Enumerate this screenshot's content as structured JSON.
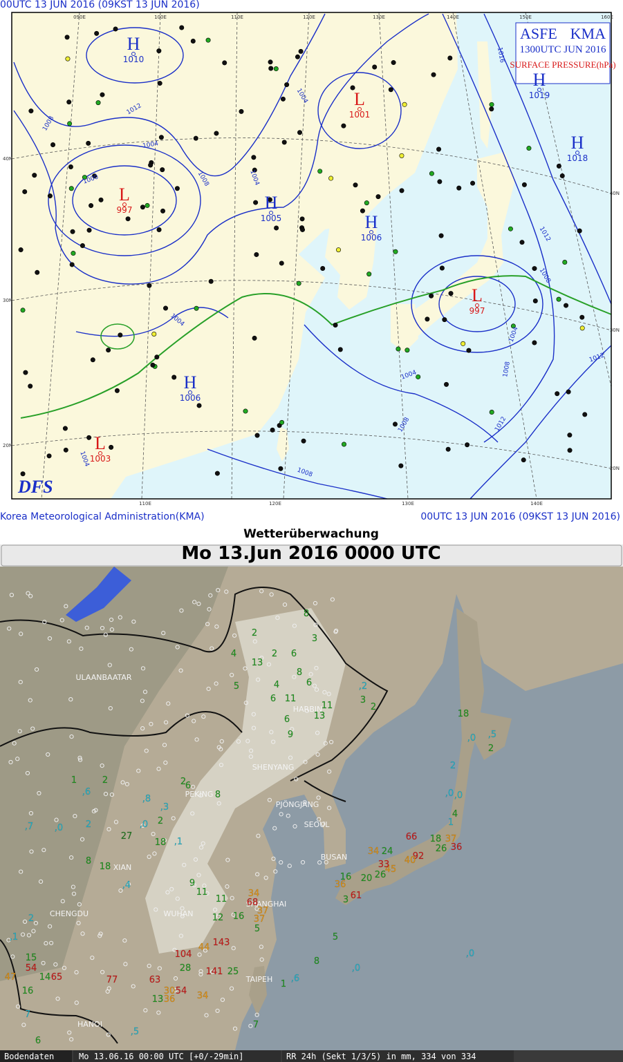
{
  "top_map": {
    "header": "00UTC 13 JUN 2016 (09KST 13 JUN 2016)",
    "legend": {
      "product": "ASFE",
      "agency": "KMA",
      "valid": "1300UTC JUN 2016",
      "field": "SURFACE PRESSURE(hPa)"
    },
    "logo": "DFS",
    "lon_labels_top": [
      "090E",
      "100E",
      "110E",
      "120E",
      "130E",
      "140E",
      "150E",
      "160E"
    ],
    "lon_labels_bottom": [
      "110E",
      "120E",
      "130E",
      "140E"
    ],
    "lat_labels_left": [
      "40N",
      "30N",
      "20N"
    ],
    "lat_labels_right": [
      "40N",
      "30N",
      "20N"
    ],
    "pressure_centers": [
      {
        "label": "H",
        "value": "1010",
        "color": "#1a2fc8"
      },
      {
        "label": "L",
        "value": "1001",
        "color": "#d81818"
      },
      {
        "label": "H",
        "value": "1019",
        "color": "#1a2fc8"
      },
      {
        "label": "H",
        "value": "1018",
        "color": "#1a2fc8"
      },
      {
        "label": "L",
        "value": "997",
        "color": "#d81818"
      },
      {
        "label": "H",
        "value": "1005",
        "color": "#1a2fc8"
      },
      {
        "label": "H",
        "value": "1006",
        "color": "#1a2fc8"
      },
      {
        "label": "L",
        "value": "997",
        "color": "#d81818"
      },
      {
        "label": "H",
        "value": "1006",
        "color": "#1a2fc8"
      },
      {
        "label": "L",
        "value": "1003",
        "color": "#d81818"
      }
    ],
    "isobar_labels": [
      "1008",
      "1012",
      "1004",
      "1000",
      "1008",
      "1004",
      "1004",
      "1016",
      "1012",
      "1008",
      "1004",
      "1008",
      "1012",
      "1012",
      "1004",
      "1008",
      "1008",
      "1004",
      "1004"
    ],
    "footer_left": "Korea Meteorological Administration(KMA)",
    "footer_right": "00UTC 13 JUN 2016 (09KST 13 JUN 2016)"
  },
  "bottom_map": {
    "title": "Wetterüberwachung",
    "date": "Mo 13.Jun 2016 0000 UTC",
    "cities": [
      "ULAANBAATAR",
      "HARBIN",
      "SHENYANG",
      "PEKING",
      "PJÖNGJANG",
      "SEOUL",
      "BUSAN",
      "XIAN",
      "CHENGDU",
      "WUHAN",
      "SHANGHAI",
      "TAIPEH",
      "HANOI"
    ],
    "stations": [
      {
        "value": "8",
        "color": "#1f9a1f"
      },
      {
        "value": "3",
        "color": "#1f9a1f"
      },
      {
        "value": "2",
        "color": "#1f9a1f"
      },
      {
        "value": "4",
        "color": "#1f9a1f"
      },
      {
        "value": "13",
        "color": "#1f9a1f"
      },
      {
        "value": "2",
        "color": "#1f9a1f"
      },
      {
        "value": "6",
        "color": "#1f9a1f"
      },
      {
        "value": "8",
        "color": "#1f9a1f"
      },
      {
        "value": "4",
        "color": "#1f9a1f"
      },
      {
        "value": "6",
        "color": "#1f9a1f"
      },
      {
        "value": "5",
        "color": "#1f9a1f"
      },
      {
        "value": "6",
        "color": "#1f9a1f"
      },
      {
        "value": "11",
        "color": "#1f9a1f"
      },
      {
        "value": "11",
        "color": "#1f9a1f"
      },
      {
        "value": "13",
        "color": "#1f9a1f"
      },
      {
        "value": "6",
        "color": "#1f9a1f"
      },
      {
        "value": "9",
        "color": "#1f9a1f"
      },
      {
        "value": "3",
        "color": "#1f9a1f"
      },
      {
        "value": "2",
        "color": "#1f9a1f"
      },
      {
        "value": "18",
        "color": "#1f9a1f"
      },
      {
        "value": "2",
        "color": "#1f9a1f"
      },
      {
        "value": "1",
        "color": "#1f9a1f"
      },
      {
        "value": "2",
        "color": "#1f9a1f"
      },
      {
        "value": "2",
        "color": "#1f9a1f"
      },
      {
        "value": "6",
        "color": "#1f9a1f"
      },
      {
        "value": "8",
        "color": "#1f9a1f"
      },
      {
        "value": "18",
        "color": "#1f9a1f"
      },
      {
        "value": "8",
        "color": "#1f9a1f"
      },
      {
        "value": "27",
        "color": "#1f7a1f"
      },
      {
        "value": "2",
        "color": "#1f9a1f"
      },
      {
        "value": "18",
        "color": "#1f9a1f"
      },
      {
        "value": "9",
        "color": "#1f9a1f"
      },
      {
        "value": "11",
        "color": "#1f9a1f"
      },
      {
        "value": "34",
        "color": "#e8950e"
      },
      {
        "value": "68",
        "color": "#d01818"
      },
      {
        "value": "37",
        "color": "#e8950e"
      },
      {
        "value": "37",
        "color": "#e8950e"
      },
      {
        "value": "16",
        "color": "#1f9a1f"
      },
      {
        "value": "5",
        "color": "#1f9a1f"
      },
      {
        "value": "11",
        "color": "#1f9a1f"
      },
      {
        "value": "12",
        "color": "#1f9a1f"
      },
      {
        "value": "15",
        "color": "#1f9a1f"
      },
      {
        "value": "54",
        "color": "#d01818"
      },
      {
        "value": "47",
        "color": "#e8950e"
      },
      {
        "value": "16",
        "color": "#1f9a1f"
      },
      {
        "value": "14",
        "color": "#1f9a1f"
      },
      {
        "value": "65",
        "color": "#d01818"
      },
      {
        "value": "77",
        "color": "#d01818"
      },
      {
        "value": "104",
        "color": "#d01818"
      },
      {
        "value": "44",
        "color": "#e8950e"
      },
      {
        "value": "143",
        "color": "#d01818"
      },
      {
        "value": "28",
        "color": "#1f9a1f"
      },
      {
        "value": "141",
        "color": "#d01818"
      },
      {
        "value": "63",
        "color": "#d01818"
      },
      {
        "value": "30",
        "color": "#e8950e"
      },
      {
        "value": "54",
        "color": "#d01818"
      },
      {
        "value": "36",
        "color": "#e8950e"
      },
      {
        "value": "13",
        "color": "#1f9a1f"
      },
      {
        "value": "34",
        "color": "#e8950e"
      },
      {
        "value": "25",
        "color": "#1f9a1f"
      },
      {
        "value": "34",
        "color": "#e8950e"
      },
      {
        "value": "24",
        "color": "#1f9a1f"
      },
      {
        "value": "66",
        "color": "#d01818"
      },
      {
        "value": "18",
        "color": "#1f9a1f"
      },
      {
        "value": "37",
        "color": "#e8950e"
      },
      {
        "value": "36",
        "color": "#d01818"
      },
      {
        "value": "26",
        "color": "#1f9a1f"
      },
      {
        "value": "92",
        "color": "#d01818"
      },
      {
        "value": "40",
        "color": "#e8950e"
      },
      {
        "value": "45",
        "color": "#e8950e"
      },
      {
        "value": "33",
        "color": "#d01818"
      },
      {
        "value": "26",
        "color": "#1f9a1f"
      },
      {
        "value": "20",
        "color": "#1f9a1f"
      },
      {
        "value": "16",
        "color": "#1f9a1f"
      },
      {
        "value": "36",
        "color": "#e8950e"
      },
      {
        "value": "61",
        "color": "#d01818"
      },
      {
        "value": "3",
        "color": "#1f9a1f"
      },
      {
        "value": "5",
        "color": "#1f9a1f"
      },
      {
        "value": "8",
        "color": "#1f9a1f"
      },
      {
        "value": ",0",
        "color": "#22b8d0"
      },
      {
        "value": ",0",
        "color": "#22b8d0"
      },
      {
        "value": ",6",
        "color": "#22b8d0"
      },
      {
        "value": "1",
        "color": "#1f9a1f"
      },
      {
        "value": "7",
        "color": "#1f9a1f"
      },
      {
        "value": ",5",
        "color": "#22b8d0"
      },
      {
        "value": "6",
        "color": "#1f9a1f"
      },
      {
        "value": "7",
        "color": "#22b8d0"
      },
      {
        "value": "2",
        "color": "#22b8d0"
      },
      {
        "value": ",1",
        "color": "#22b8d0"
      },
      {
        "value": ",2",
        "color": "#22b8d0"
      },
      {
        "value": ",5",
        "color": "#22b8d0"
      },
      {
        "value": ",0",
        "color": "#22b8d0"
      },
      {
        "value": "2",
        "color": "#22b8d0"
      },
      {
        "value": ",0",
        "color": "#22b8d0"
      },
      {
        "value": ",0",
        "color": "#22b8d0"
      },
      {
        "value": "4",
        "color": "#1f9a1f"
      },
      {
        "value": "1",
        "color": "#22b8d0"
      },
      {
        "value": ",6",
        "color": "#22b8d0"
      },
      {
        "value": ",8",
        "color": "#22b8d0"
      },
      {
        "value": ",3",
        "color": "#22b8d0"
      },
      {
        "value": "2",
        "color": "#22b8d0"
      },
      {
        "value": ",7",
        "color": "#22b8d0"
      },
      {
        "value": ",0",
        "color": "#22b8d0"
      },
      {
        "value": ",1",
        "color": "#22b8d0"
      },
      {
        "value": ",0",
        "color": "#22b8d0"
      },
      {
        "value": ",4",
        "color": "#22b8d0"
      }
    ],
    "status": {
      "source": "Bodendaten",
      "time": "Mo 13.06.16 00:00 UTC [+0/-29min]",
      "product": "RR 24h (Sekt 1/3/5) in mm, 334 von 334"
    }
  }
}
